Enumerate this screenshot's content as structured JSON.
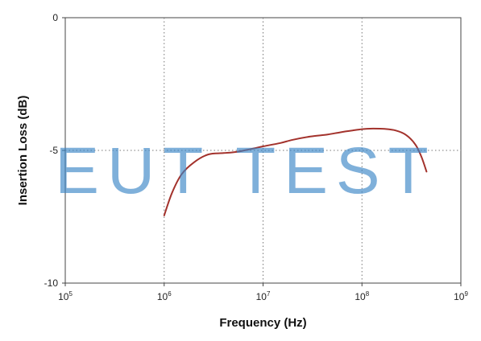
{
  "chart_data": {
    "type": "line",
    "xlabel": "Frequency (Hz)",
    "ylabel": "Insertion Loss (dB)",
    "x_scale": "log",
    "xlim": [
      100000,
      1000000000
    ],
    "ylim": [
      -10,
      0
    ],
    "x_ticks": [
      {
        "value": 100000,
        "base": "10",
        "exp": "5"
      },
      {
        "value": 1000000,
        "base": "10",
        "exp": "6"
      },
      {
        "value": 10000000,
        "base": "10",
        "exp": "7"
      },
      {
        "value": 100000000,
        "base": "10",
        "exp": "8"
      },
      {
        "value": 1000000000,
        "base": "10",
        "exp": "9"
      }
    ],
    "y_ticks": [
      {
        "value": 0,
        "label": "0"
      },
      {
        "value": -5,
        "label": "-5"
      },
      {
        "value": -10,
        "label": "-10"
      }
    ],
    "grid": "dotted",
    "series": [
      {
        "color": "#a3322c",
        "x": [
          1000000,
          1200000,
          1500000,
          2000000,
          2800000,
          4000000,
          5500000,
          7500000,
          10000000,
          15000000,
          20000000,
          30000000,
          45000000,
          60000000,
          80000000,
          100000000,
          130000000,
          170000000,
          220000000,
          280000000,
          350000000,
          400000000,
          450000000
        ],
        "y": [
          -7.45,
          -6.6,
          -5.9,
          -5.45,
          -5.15,
          -5.1,
          -5.05,
          -4.95,
          -4.85,
          -4.72,
          -4.6,
          -4.48,
          -4.4,
          -4.32,
          -4.25,
          -4.2,
          -4.18,
          -4.19,
          -4.25,
          -4.42,
          -4.8,
          -5.25,
          -5.8
        ]
      }
    ]
  },
  "watermark": {
    "text": "EUT TEST",
    "color": "#3b86c6"
  }
}
